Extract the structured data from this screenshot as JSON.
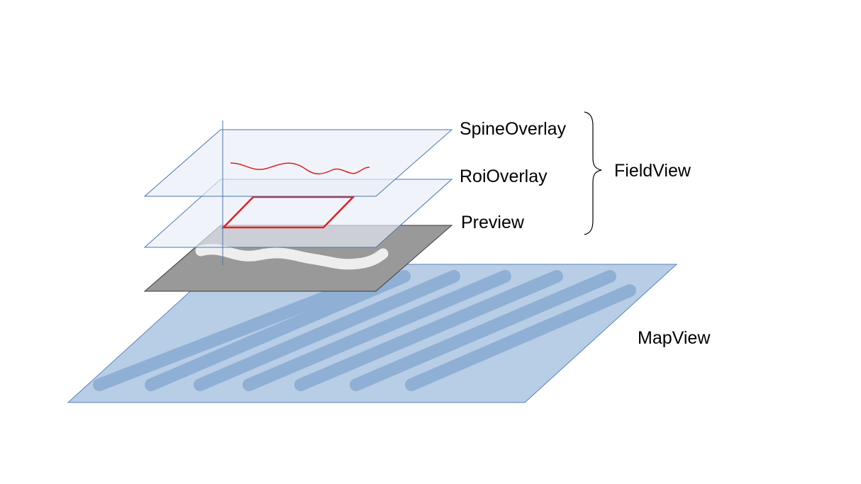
{
  "labels": {
    "spine_overlay": "SpineOverlay",
    "roi_overlay": "RoiOverlay",
    "preview": "Preview",
    "field_view": "FieldView",
    "map_view": "MapView"
  },
  "colors": {
    "overlay_fill": "#e8eef8",
    "overlay_stroke": "#4a76b0",
    "preview_fill": "#999999",
    "preview_stroke": "#3a3a3a",
    "map_fill": "#b8cde6",
    "map_stroke": "#5a82b8",
    "map_stripes": "#8fb0d4",
    "roi_outline": "#e02020",
    "spine_line": "#dd1f1f",
    "preview_stroke_path": "#eeeeee",
    "axis_line": "#4a76b0",
    "brace": "#000000"
  }
}
